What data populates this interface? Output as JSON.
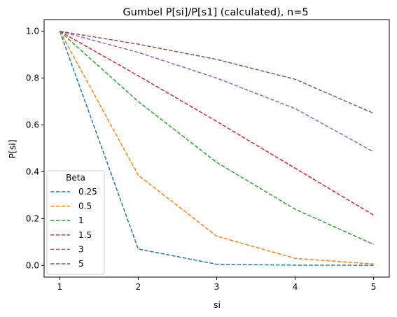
{
  "chart_data": {
    "type": "line",
    "title": "Gumbel P[si]/P[s1] (calculated), n=5",
    "xlabel": "si",
    "ylabel": "P[si]",
    "x": [
      1,
      2,
      3,
      4,
      5
    ],
    "xticks": [
      "1",
      "2",
      "3",
      "4",
      "5"
    ],
    "yticks": [
      "0.0",
      "0.2",
      "0.4",
      "0.6",
      "0.8",
      "1.0"
    ],
    "xlim": [
      0.8,
      5.2
    ],
    "ylim": [
      -0.05,
      1.05
    ],
    "grid": false,
    "line_style": "dashed",
    "legend": {
      "title": "Beta",
      "placement": "lower-left"
    },
    "series": [
      {
        "name": "0.25",
        "color": "#1f77b4",
        "values": [
          1.0,
          0.07,
          0.005,
          0.001,
          0.0005
        ]
      },
      {
        "name": "0.5",
        "color": "#ff7f0e",
        "values": [
          1.0,
          0.385,
          0.125,
          0.03,
          0.006
        ]
      },
      {
        "name": "1",
        "color": "#2ca02c",
        "values": [
          1.0,
          0.7,
          0.44,
          0.24,
          0.09
        ]
      },
      {
        "name": "1.5",
        "color": "#d62728",
        "values": [
          1.0,
          0.81,
          0.615,
          0.415,
          0.215
        ]
      },
      {
        "name": "3",
        "color": "#9467bd",
        "values": [
          1.0,
          0.91,
          0.8,
          0.67,
          0.485
        ]
      },
      {
        "name": "5",
        "color": "#8c564b",
        "values": [
          1.0,
          0.945,
          0.88,
          0.795,
          0.65
        ]
      }
    ]
  }
}
